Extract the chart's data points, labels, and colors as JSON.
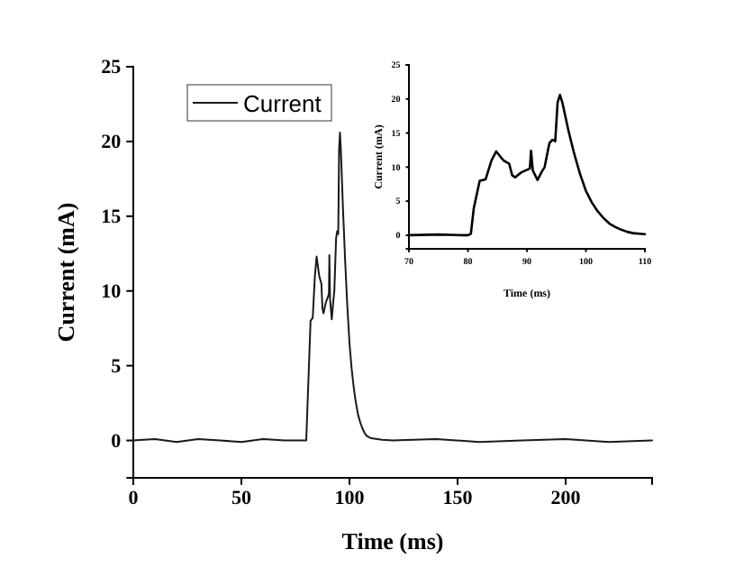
{
  "chart_data": [
    {
      "type": "line",
      "xlabel": "Time (ms)",
      "ylabel": "Current (mA)",
      "xlim": [
        0,
        240
      ],
      "ylim": [
        -2.5,
        25
      ],
      "xticks": [
        0,
        50,
        100,
        150,
        200
      ],
      "yticks": [
        0,
        5,
        10,
        15,
        20,
        25
      ],
      "legend": "top left",
      "grid": false,
      "line_style": "solid",
      "marker": "none",
      "series": [
        {
          "name": "Current",
          "color": "#1a1a1a",
          "x": [
            0,
            10,
            20,
            30,
            40,
            50,
            60,
            70,
            79,
            80,
            81,
            82,
            83,
            84,
            84.8,
            86,
            87,
            87.5,
            88,
            89,
            90,
            90.5,
            90.7,
            91,
            91.8,
            92.5,
            93,
            93.8,
            94.3,
            94.8,
            95.2,
            95.6,
            96,
            97,
            98,
            99,
            100,
            101,
            102,
            103,
            104,
            105,
            106,
            107,
            108,
            110,
            115,
            120,
            140,
            160,
            180,
            200,
            220,
            240
          ],
          "values": [
            0,
            0.1,
            -0.1,
            0.1,
            0,
            -0.1,
            0.1,
            0,
            0,
            0,
            4,
            8,
            8.2,
            11,
            12.3,
            11,
            10.5,
            8.8,
            8.5,
            9.2,
            9.6,
            9.8,
            12.4,
            9.5,
            8.1,
            9.3,
            10,
            13.5,
            14,
            13.8,
            19.5,
            20.6,
            19.5,
            15.5,
            12,
            9,
            6.5,
            4.8,
            3.5,
            2.5,
            1.7,
            1.2,
            0.8,
            0.5,
            0.3,
            0.15,
            0.05,
            0,
            0.1,
            -0.1,
            0,
            0.1,
            -0.1,
            0
          ]
        }
      ]
    },
    {
      "type": "line",
      "xlabel": "Time (ms)",
      "ylabel": "Current (mA)",
      "xlim": [
        70,
        110
      ],
      "ylim": [
        -2,
        25
      ],
      "xticks": [
        70,
        80,
        90,
        100,
        110
      ],
      "yticks": [
        0,
        5,
        10,
        15,
        20,
        25
      ],
      "legend": false,
      "grid": false,
      "line_style": "solid",
      "marker": "none",
      "series": [
        {
          "color": "#000000",
          "x": [
            70,
            75,
            79,
            80,
            80.5,
            81,
            82,
            83,
            84,
            84.8,
            86,
            87,
            87.5,
            88,
            89,
            90,
            90.5,
            90.7,
            91,
            91.8,
            92.5,
            93,
            93.8,
            94.3,
            94.8,
            95.2,
            95.6,
            96,
            97,
            98,
            99,
            100,
            101,
            102,
            103,
            104,
            105,
            106,
            107,
            108,
            110
          ],
          "values": [
            0,
            0.1,
            0,
            0,
            0.2,
            4,
            8,
            8.2,
            11,
            12.3,
            11,
            10.5,
            8.8,
            8.5,
            9.2,
            9.6,
            9.8,
            12.4,
            9.5,
            8.1,
            9.3,
            10,
            13.5,
            14,
            13.8,
            19.5,
            20.6,
            19.5,
            15.5,
            12,
            9,
            6.5,
            4.8,
            3.5,
            2.5,
            1.7,
            1.2,
            0.8,
            0.5,
            0.3,
            0.15
          ]
        }
      ]
    }
  ]
}
